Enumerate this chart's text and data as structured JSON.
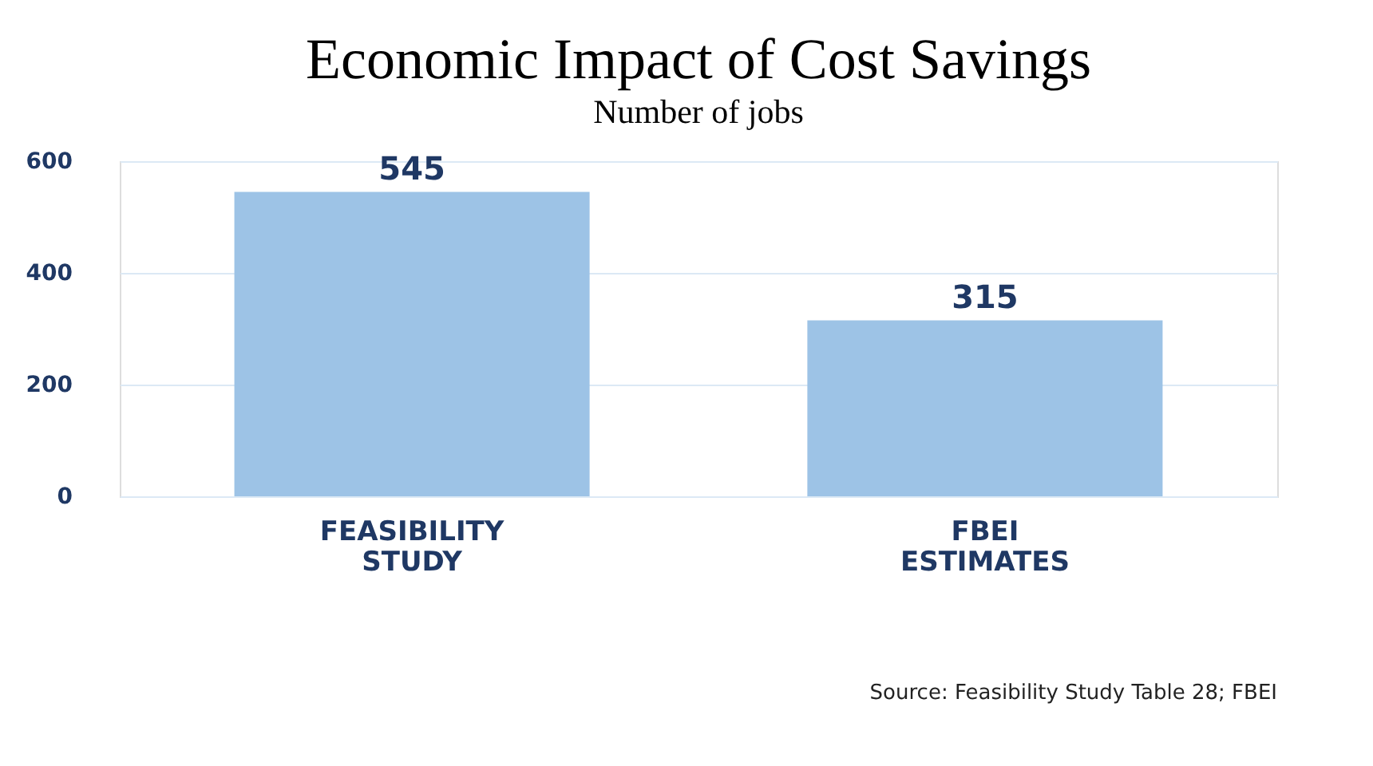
{
  "chart_data": {
    "type": "bar",
    "title": "Economic Impact of Cost Savings",
    "subtitle": "Number of jobs",
    "categories": [
      "FEASIBILITY STUDY",
      "FBEI ESTIMATES"
    ],
    "values": [
      545,
      315
    ],
    "color": "#9dc3e6",
    "ylim": [
      0,
      600
    ],
    "yticks": [
      0,
      200,
      400,
      600
    ],
    "grid": "y",
    "data_labels": true,
    "annotations": [
      "Source: Feasibility Study Table 28; FBEI"
    ]
  }
}
